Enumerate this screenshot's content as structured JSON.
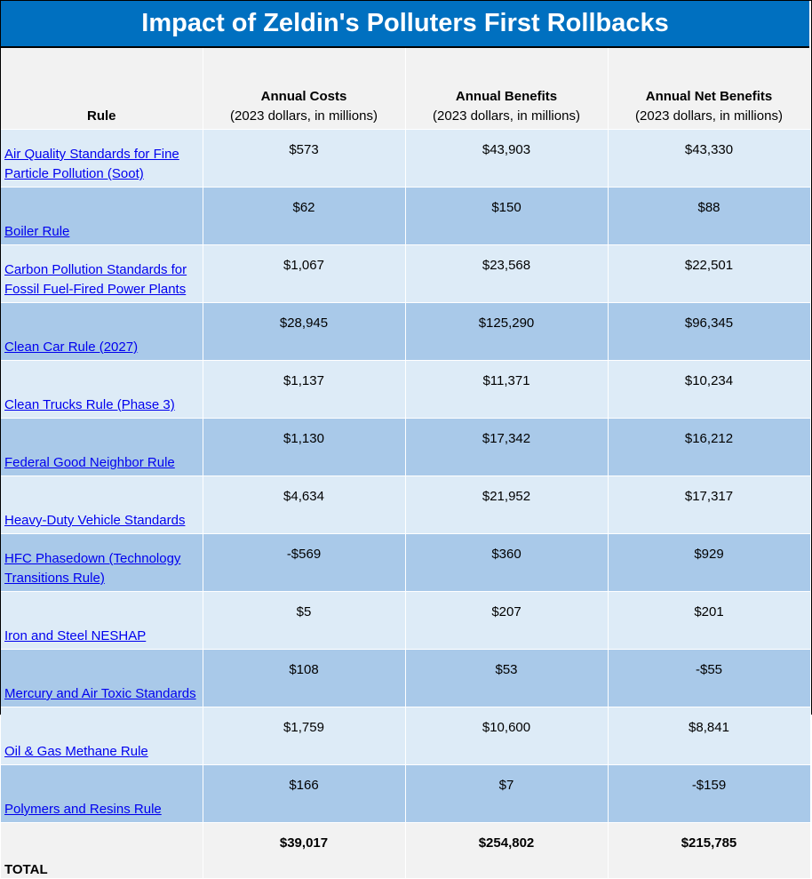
{
  "title": "Impact of Zeldin's Polluters First Rollbacks",
  "columns": [
    {
      "main": "Rule",
      "sub": ""
    },
    {
      "main": "Annual Costs",
      "sub": "(2023 dollars, in millions)"
    },
    {
      "main": "Annual Benefits",
      "sub": "(2023 dollars, in millions)"
    },
    {
      "main": "Annual Net Benefits",
      "sub": "(2023 dollars, in millions)"
    }
  ],
  "rows": [
    {
      "rule": "Air Quality Standards for Fine Particle Pollution (Soot)",
      "costs": "$573",
      "benefits": "$43,903",
      "net": "$43,330"
    },
    {
      "rule": "Boiler Rule",
      "costs": "$62",
      "benefits": "$150",
      "net": "$88"
    },
    {
      "rule": "Carbon Pollution Standards for Fossil Fuel-Fired Power Plants",
      "costs": "$1,067",
      "benefits": "$23,568",
      "net": "$22,501"
    },
    {
      "rule": "Clean Car Rule (2027)",
      "costs": "$28,945",
      "benefits": "$125,290",
      "net": "$96,345"
    },
    {
      "rule": "Clean Trucks Rule (Phase 3)",
      "costs": "$1,137",
      "benefits": "$11,371",
      "net": "$10,234"
    },
    {
      "rule": "Federal Good Neighbor Rule",
      "costs": "$1,130",
      "benefits": "$17,342",
      "net": "$16,212"
    },
    {
      "rule": "Heavy-Duty Vehicle Standards",
      "costs": "$4,634",
      "benefits": "$21,952",
      "net": "$17,317"
    },
    {
      "rule": "HFC Phasedown (Technology Transitions Rule)",
      "costs": "-$569",
      "benefits": "$360",
      "net": "$929"
    },
    {
      "rule": "Iron and Steel NESHAP",
      "costs": "$5",
      "benefits": "$207",
      "net": "$201"
    },
    {
      "rule": "Mercury and Air Toxic Standards",
      "costs": "$108",
      "benefits": "$53",
      "net": "-$55"
    },
    {
      "rule": "Oil & Gas Methane Rule",
      "costs": "$1,759",
      "benefits": "$10,600",
      "net": "$8,841"
    },
    {
      "rule": "Polymers and Resins Rule",
      "costs": "$166",
      "benefits": "$7",
      "net": "-$159"
    }
  ],
  "total": {
    "label": "TOTAL",
    "costs": "$39,017",
    "benefits": "$254,802",
    "net": "$215,785"
  }
}
